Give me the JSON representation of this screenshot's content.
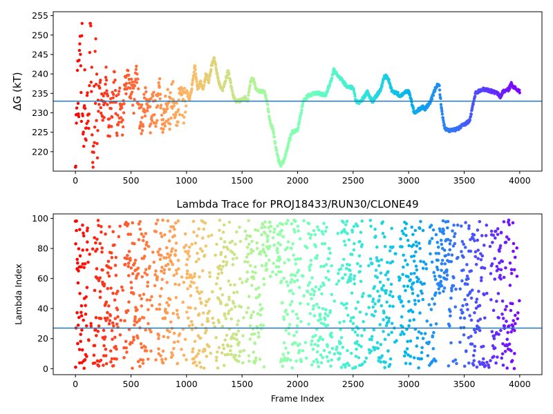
{
  "chart_data": [
    {
      "type": "scatter",
      "title": "",
      "xlabel": "",
      "ylabel": "ΔG (kT)",
      "xlim": [
        -200,
        4200
      ],
      "ylim": [
        215,
        256
      ],
      "xticks": [
        0,
        500,
        1000,
        1500,
        2000,
        2500,
        3000,
        3500,
        4000
      ],
      "yticks": [
        220,
        225,
        230,
        235,
        240,
        245,
        250,
        255
      ],
      "hline": 233.0,
      "grid": false,
      "colormap": "rainbow (reversed along frame index: red at 0, purple at 4000)",
      "colors": {
        "hline": "#1f77b4",
        "start": "#ff0000",
        "end": "#8000ff"
      },
      "series": [
        {
          "values_by_frame": [
            [
              0,
              220
            ],
            [
              20,
              240
            ],
            [
              30,
              230
            ],
            [
              45,
              250
            ],
            [
              50,
              227
            ],
            [
              60,
              248
            ],
            [
              70,
              216
            ],
            [
              80,
              239
            ],
            [
              90,
              232
            ],
            [
              100,
              222
            ],
            [
              110,
              236
            ],
            [
              120,
              230
            ],
            [
              130,
              251
            ],
            [
              140,
              244
            ],
            [
              150,
              228
            ],
            [
              160,
              219
            ],
            [
              175,
              235
            ],
            [
              185,
              242
            ],
            [
              200,
              226
            ],
            [
              215,
              238
            ],
            [
              230,
              233
            ],
            [
              250,
              230
            ],
            [
              275,
              239
            ],
            [
              300,
              225
            ],
            [
              325,
              231
            ],
            [
              350,
              237
            ],
            [
              375,
              228
            ],
            [
              400,
              234
            ],
            [
              425,
              228
            ],
            [
              450,
              236
            ],
            [
              475,
              241
            ],
            [
              500,
              236
            ],
            [
              525,
              233
            ],
            [
              550,
              238
            ],
            [
              575,
              231
            ],
            [
              600,
              228
            ],
            [
              625,
              233
            ],
            [
              650,
              235
            ],
            [
              675,
              229
            ],
            [
              700,
              232
            ],
            [
              725,
              229
            ],
            [
              750,
              237
            ],
            [
              775,
              230
            ],
            [
              800,
              227
            ],
            [
              825,
              234
            ],
            [
              850,
              230
            ],
            [
              875,
              235
            ],
            [
              900,
              229
            ],
            [
              925,
              232
            ],
            [
              950,
              235
            ],
            [
              975,
              231
            ],
            [
              1000,
              236
            ],
            [
              1025,
              233
            ],
            [
              1050,
              237
            ],
            [
              1075,
              242
            ],
            [
              1100,
              236
            ],
            [
              1125,
              238
            ],
            [
              1150,
              236
            ],
            [
              1175,
              240
            ],
            [
              1200,
              238
            ],
            [
              1225,
              242
            ],
            [
              1250,
              244
            ],
            [
              1275,
              240
            ],
            [
              1300,
              237
            ],
            [
              1325,
              236
            ],
            [
              1350,
              238
            ],
            [
              1375,
              241
            ],
            [
              1400,
              237
            ],
            [
              1425,
              234
            ],
            [
              1450,
              233
            ],
            [
              1475,
              233
            ],
            [
              1500,
              233.5
            ],
            [
              1525,
              234
            ],
            [
              1550,
              233
            ],
            [
              1575,
              238
            ],
            [
              1600,
              239
            ],
            [
              1625,
              236
            ],
            [
              1650,
              235.5
            ],
            [
              1700,
              235.5
            ],
            [
              1725,
              233
            ],
            [
              1750,
              228
            ],
            [
              1775,
              226
            ],
            [
              1800,
              222
            ],
            [
              1825,
              218
            ],
            [
              1850,
              216.5
            ],
            [
              1875,
              217.5
            ],
            [
              1900,
              220
            ],
            [
              1925,
              223
            ],
            [
              1950,
              225
            ],
            [
              2000,
              225.5
            ],
            [
              2025,
              229
            ],
            [
              2050,
              233
            ],
            [
              2100,
              234.5
            ],
            [
              2150,
              235
            ],
            [
              2200,
              235
            ],
            [
              2250,
              234.5
            ],
            [
              2300,
              238
            ],
            [
              2325,
              241
            ],
            [
              2350,
              240
            ],
            [
              2400,
              238.5
            ],
            [
              2450,
              236.5
            ],
            [
              2500,
              236.5
            ],
            [
              2525,
              233
            ],
            [
              2550,
              232.5
            ],
            [
              2600,
              234
            ],
            [
              2625,
              235.5
            ],
            [
              2650,
              234
            ],
            [
              2675,
              233
            ],
            [
              2700,
              234
            ],
            [
              2750,
              236
            ],
            [
              2775,
              239
            ],
            [
              2800,
              239.5
            ],
            [
              2825,
              238
            ],
            [
              2850,
              235.5
            ],
            [
              2900,
              235
            ],
            [
              2925,
              234
            ],
            [
              2950,
              235
            ],
            [
              2975,
              235.5
            ],
            [
              3000,
              235.5
            ],
            [
              3025,
              233
            ],
            [
              3050,
              230
            ],
            [
              3100,
              231
            ],
            [
              3125,
              231.5
            ],
            [
              3150,
              231
            ],
            [
              3200,
              233
            ],
            [
              3225,
              235
            ],
            [
              3250,
              237
            ],
            [
              3275,
              237
            ],
            [
              3300,
              230
            ],
            [
              3325,
              226
            ],
            [
              3350,
              225.5
            ],
            [
              3400,
              225.5
            ],
            [
              3450,
              226
            ],
            [
              3500,
              227
            ],
            [
              3550,
              228
            ],
            [
              3600,
              235
            ],
            [
              3650,
              236
            ],
            [
              3700,
              236
            ],
            [
              3750,
              235.5
            ],
            [
              3800,
              235
            ],
            [
              3825,
              234
            ],
            [
              3850,
              235.5
            ],
            [
              3900,
              236
            ],
            [
              3925,
              237.5
            ],
            [
              3950,
              236.5
            ],
            [
              4000,
              235.5
            ]
          ]
        }
      ]
    },
    {
      "type": "scatter",
      "title": "Lambda Trace for PROJ18433/RUN30/CLONE49",
      "xlabel": "Frame Index",
      "ylabel": "Lambda Index",
      "xlim": [
        -200,
        4200
      ],
      "ylim": [
        -4,
        103
      ],
      "xticks": [
        0,
        500,
        1000,
        1500,
        2000,
        2500,
        3000,
        3500,
        4000
      ],
      "yticks": [
        0,
        20,
        40,
        60,
        80,
        100
      ],
      "hline": 27,
      "grid": false,
      "series": [
        {
          "description_note": "",
          "x_range": [
            0,
            4000
          ],
          "y_range": [
            0,
            99
          ]
        }
      ]
    }
  ]
}
